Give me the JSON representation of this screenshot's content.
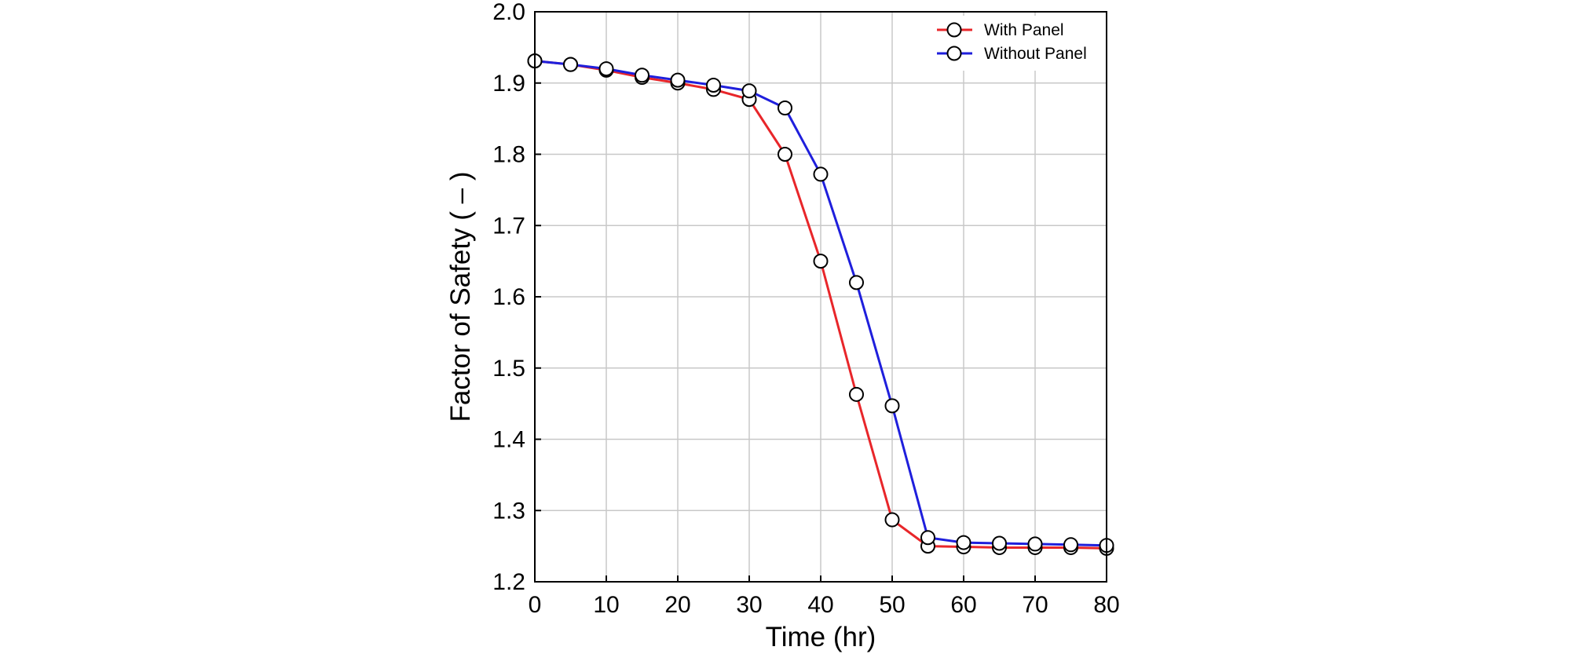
{
  "chart_data": {
    "type": "line",
    "title": "",
    "xlabel": "Time (hr)",
    "ylabel": "Factor of Safety ( – )",
    "xlim": [
      0,
      80
    ],
    "ylim": [
      1.2,
      2.0
    ],
    "xticks": [
      0,
      10,
      20,
      30,
      40,
      50,
      60,
      70,
      80
    ],
    "yticks": [
      1.2,
      1.3,
      1.4,
      1.5,
      1.6,
      1.7,
      1.8,
      1.9,
      2.0
    ],
    "xtick_labels": [
      "0",
      "10",
      "20",
      "30",
      "40",
      "50",
      "60",
      "70",
      "80"
    ],
    "ytick_labels": [
      "1.2",
      "1.3",
      "1.4",
      "1.5",
      "1.6",
      "1.7",
      "1.8",
      "1.9",
      "2.0"
    ],
    "grid": true,
    "legend_position": "top-right",
    "x": [
      0,
      5,
      10,
      15,
      20,
      25,
      30,
      35,
      40,
      45,
      50,
      55,
      60,
      65,
      70,
      75,
      80
    ],
    "series": [
      {
        "name": "With Panel",
        "color": "#e8262a",
        "marker": "open-circle",
        "values": [
          1.931,
          1.926,
          1.918,
          1.908,
          1.9,
          1.891,
          1.877,
          1.8,
          1.65,
          1.463,
          1.287,
          1.25,
          1.249,
          1.248,
          1.248,
          1.248,
          1.247
        ]
      },
      {
        "name": "Without Panel",
        "color": "#1f1fdc",
        "marker": "open-circle",
        "values": [
          1.931,
          1.926,
          1.92,
          1.911,
          1.904,
          1.897,
          1.889,
          1.865,
          1.772,
          1.62,
          1.447,
          1.262,
          1.255,
          1.254,
          1.253,
          1.252,
          1.251
        ]
      }
    ]
  }
}
